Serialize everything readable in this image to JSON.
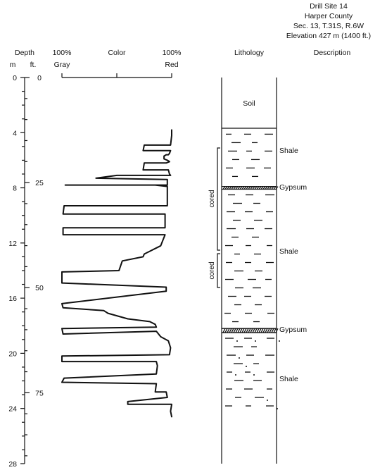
{
  "header": {
    "line1": "Drill Site 14",
    "line2": "Harper County",
    "line3": "Sec. 13, T.31S, R.6W",
    "line4": "Elevation 427 m (1400 ft.)"
  },
  "columns": {
    "depth": "Depth",
    "m": "m",
    "ft": "ft.",
    "color": "Color",
    "gray_pct": "100%",
    "gray": "Gray",
    "red_pct": "100%",
    "red": "Red",
    "lithology": "Lithology",
    "description": "Description"
  },
  "depth_axis": {
    "m_labels": [
      "0",
      "4",
      "8",
      "12",
      "16",
      "20",
      "24",
      "28"
    ],
    "ft_labels": [
      "0",
      "25",
      "50",
      "75"
    ]
  },
  "chart_data": {
    "type": "line",
    "x": {
      "label": "Color",
      "min_label": "100% Gray",
      "max_label": "100% Red",
      "range": [
        0,
        100
      ]
    },
    "y": {
      "label": "Depth (m)",
      "range": [
        0,
        28
      ]
    },
    "series": [
      {
        "points": [
          [
            100,
            3.8
          ],
          [
            100,
            4.2
          ],
          [
            99,
            4.9
          ],
          [
            75,
            4.9
          ],
          [
            74,
            5.3
          ],
          [
            99,
            5.3
          ],
          [
            98,
            5.5
          ],
          [
            97,
            5.6
          ],
          [
            95,
            5.6
          ],
          [
            93,
            5.7
          ],
          [
            93,
            5.9
          ],
          [
            96,
            6.0
          ],
          [
            98,
            6.1
          ],
          [
            95,
            6.2
          ],
          [
            75,
            6.2
          ],
          [
            74,
            6.7
          ],
          [
            97,
            6.7
          ],
          [
            98,
            7.0
          ],
          [
            99,
            7.1
          ],
          [
            50,
            7.1
          ],
          [
            31,
            7.3
          ],
          [
            96,
            7.4
          ],
          [
            96,
            7.8
          ],
          [
            3,
            7.8
          ],
          [
            85,
            7.8
          ],
          [
            96,
            7.9
          ],
          [
            96,
            9.3
          ],
          [
            2,
            9.3
          ],
          [
            1,
            9.9
          ],
          [
            94,
            9.9
          ],
          [
            94,
            10.9
          ],
          [
            1,
            10.9
          ],
          [
            1,
            11.4
          ],
          [
            94,
            11.4
          ],
          [
            92,
            11.8
          ],
          [
            90,
            12.2
          ],
          [
            85,
            12.4
          ],
          [
            80,
            12.6
          ],
          [
            75,
            12.8
          ],
          [
            74,
            13.0
          ],
          [
            55,
            13.3
          ],
          [
            52,
            14.0
          ],
          [
            0,
            14.1
          ],
          [
            0,
            14.9
          ],
          [
            95,
            15.2
          ],
          [
            95,
            15.5
          ],
          [
            0,
            16.4
          ],
          [
            1,
            16.7
          ],
          [
            38,
            16.9
          ],
          [
            42,
            17.1
          ],
          [
            60,
            17.5
          ],
          [
            80,
            17.7
          ],
          [
            85,
            17.9
          ],
          [
            86,
            18.1
          ],
          [
            0,
            18.2
          ],
          [
            1,
            18.6
          ],
          [
            86,
            18.4
          ],
          [
            90,
            18.8
          ],
          [
            97,
            19.1
          ],
          [
            99,
            19.6
          ],
          [
            98,
            20.1
          ],
          [
            0,
            20.2
          ],
          [
            0,
            20.6
          ],
          [
            86,
            20.6
          ],
          [
            87,
            20.9
          ],
          [
            86,
            21.5
          ],
          [
            2,
            21.8
          ],
          [
            0,
            22.1
          ],
          [
            86,
            22.2
          ],
          [
            85,
            22.8
          ],
          [
            95,
            22.8
          ],
          [
            96,
            23.2
          ],
          [
            60,
            23.5
          ],
          [
            60,
            23.7
          ],
          [
            100,
            23.7
          ],
          [
            99,
            24.2
          ],
          [
            100,
            24.6
          ]
        ]
      }
    ]
  },
  "lithology": {
    "units": [
      {
        "name": "Soil",
        "top_m": 0,
        "bottom_m": 3.7,
        "pattern": "blank"
      },
      {
        "name": "Shale",
        "top_m": 3.7,
        "bottom_m": 7.9,
        "pattern": "dash"
      },
      {
        "name": "Gypsum",
        "top_m": 7.9,
        "bottom_m": 8.1,
        "pattern": "hatch"
      },
      {
        "name": "Shale",
        "top_m": 8.1,
        "bottom_m": 18.2,
        "pattern": "dash"
      },
      {
        "name": "Gypsum",
        "top_m": 18.2,
        "bottom_m": 18.5,
        "pattern": "hatch"
      },
      {
        "name": "Shale",
        "top_m": 18.5,
        "bottom_m": 24.0,
        "pattern": "dash-dot"
      }
    ],
    "cored": [
      {
        "label": "cored",
        "top_m": 5.2,
        "bottom_m": 12.5
      },
      {
        "label": "cored",
        "top_m": 12.8,
        "bottom_m": 15.2
      }
    ]
  },
  "descriptions": [
    {
      "text": "Shale",
      "depth_m": 5.3
    },
    {
      "text": "Gypsum",
      "depth_m": 7.8
    },
    {
      "text": "Shale",
      "depth_m": 12.6
    },
    {
      "text": "Gypsum",
      "depth_m": 18.2
    },
    {
      "text": "Shale",
      "depth_m": 22.1
    }
  ]
}
